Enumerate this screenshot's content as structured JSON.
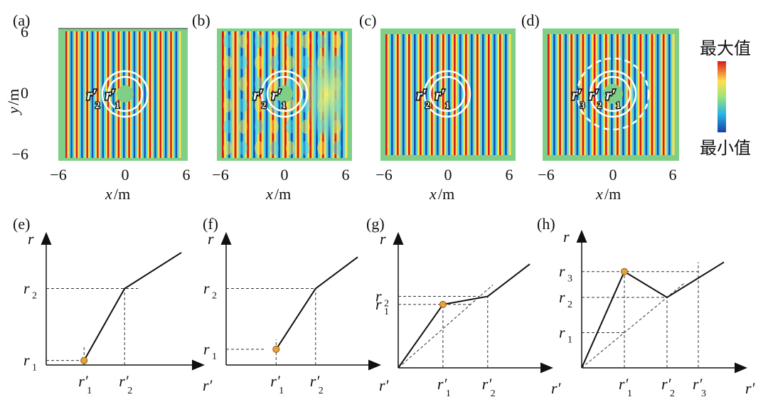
{
  "colors": {
    "red": "#d7191c",
    "blue": "#1a4fb5",
    "yellow": "#ffe14a",
    "cyan": "#4fd7e4",
    "border_green": "#7fcf86",
    "marker": "#e8a23a"
  },
  "colorbar": {
    "max_label": "最大值",
    "min_label": "最小值"
  },
  "field_panels": [
    {
      "tag": "(a)",
      "x_ticks": [
        "−6",
        "0",
        "6"
      ],
      "y_ticks": [
        "6",
        "0",
        "−6"
      ],
      "xlabel_sym": "x",
      "xlabel_unit": "/m",
      "ylabel_sym": "y",
      "ylabel_unit": "/m",
      "radius_labels": [
        "r′",
        "r′"
      ],
      "radius_subs": [
        "2",
        "1"
      ]
    },
    {
      "tag": "(b)",
      "x_ticks": [
        "−6",
        "0",
        "6"
      ],
      "xlabel_sym": "x",
      "xlabel_unit": "/m",
      "radius_labels": [
        "r′",
        "r′"
      ],
      "radius_subs": [
        "2",
        "1"
      ]
    },
    {
      "tag": "(c)",
      "x_ticks": [
        "−6",
        "0",
        "6"
      ],
      "xlabel_sym": "x",
      "xlabel_unit": "/m",
      "radius_labels": [
        "r′",
        "r′"
      ],
      "radius_subs": [
        "2",
        "1"
      ]
    },
    {
      "tag": "(d)",
      "x_ticks": [
        "−6",
        "0",
        "6"
      ],
      "xlabel_sym": "x",
      "xlabel_unit": "/m",
      "radius_labels": [
        "r′",
        "r′",
        "r′"
      ],
      "radius_subs": [
        "3",
        "2",
        "1"
      ]
    }
  ],
  "chart_data": [
    {
      "panel": "(e)",
      "type": "line",
      "xlabel": "r′",
      "ylabel": "r",
      "x_ticks": [
        {
          "sym": "r′",
          "sub": "1",
          "value": 0.28
        },
        {
          "sym": "r′",
          "sub": "2",
          "value": 0.58
        }
      ],
      "y_ticks": [
        {
          "sym": "r",
          "sub": "1",
          "value": 0.04
        },
        {
          "sym": "r",
          "sub": "2",
          "value": 0.68
        }
      ],
      "series": [
        {
          "name": "mapping",
          "points": [
            [
              0.28,
              0.04
            ],
            [
              0.58,
              0.68
            ],
            [
              1.0,
              1.0
            ]
          ]
        }
      ],
      "marker": [
        0.28,
        0.04
      ],
      "identity_line": false
    },
    {
      "panel": "(f)",
      "type": "line",
      "xlabel": "r′",
      "ylabel": "r",
      "x_ticks": [
        {
          "sym": "r′",
          "sub": "1",
          "value": 0.38
        },
        {
          "sym": "r′",
          "sub": "2",
          "value": 0.68
        }
      ],
      "y_ticks": [
        {
          "sym": "r",
          "sub": "1",
          "value": 0.14
        },
        {
          "sym": "r",
          "sub": "2",
          "value": 0.68
        }
      ],
      "series": [
        {
          "name": "mapping",
          "points": [
            [
              0.38,
              0.14
            ],
            [
              0.68,
              0.68
            ],
            [
              1.0,
              0.96
            ]
          ]
        }
      ],
      "marker": [
        0.38,
        0.14
      ],
      "identity_line": false
    },
    {
      "panel": "(g)",
      "type": "line",
      "xlabel": "r′",
      "ylabel": "r",
      "x_ticks": [
        {
          "sym": "r′",
          "sub": "1",
          "value": 0.34
        },
        {
          "sym": "r′",
          "sub": "2",
          "value": 0.68
        }
      ],
      "y_ticks": [
        {
          "sym": "r",
          "sub": "1",
          "value": 0.55
        },
        {
          "sym": "r",
          "sub": "2",
          "value": 0.62
        }
      ],
      "series": [
        {
          "name": "mapping",
          "points": [
            [
              0.0,
              0.0
            ],
            [
              0.34,
              0.55
            ],
            [
              0.68,
              0.62
            ],
            [
              1.0,
              0.9
            ]
          ]
        }
      ],
      "marker": [
        0.34,
        0.55
      ],
      "identity_line": true
    },
    {
      "panel": "(h)",
      "type": "line",
      "xlabel": "r′",
      "ylabel": "r",
      "x_ticks": [
        {
          "sym": "r′",
          "sub": "1",
          "value": 0.3
        },
        {
          "sym": "r′",
          "sub": "2",
          "value": 0.6
        },
        {
          "sym": "r′",
          "sub": "3",
          "value": 0.82
        }
      ],
      "y_ticks": [
        {
          "sym": "r",
          "sub": "1",
          "value": 0.3
        },
        {
          "sym": "r",
          "sub": "2",
          "value": 0.6
        },
        {
          "sym": "r",
          "sub": "3",
          "value": 0.82
        }
      ],
      "series": [
        {
          "name": "mapping",
          "points": [
            [
              0.0,
              0.0
            ],
            [
              0.3,
              0.82
            ],
            [
              0.6,
              0.6
            ],
            [
              1.0,
              0.9
            ]
          ]
        }
      ],
      "marker": [
        0.3,
        0.82
      ],
      "identity_line": true
    }
  ]
}
